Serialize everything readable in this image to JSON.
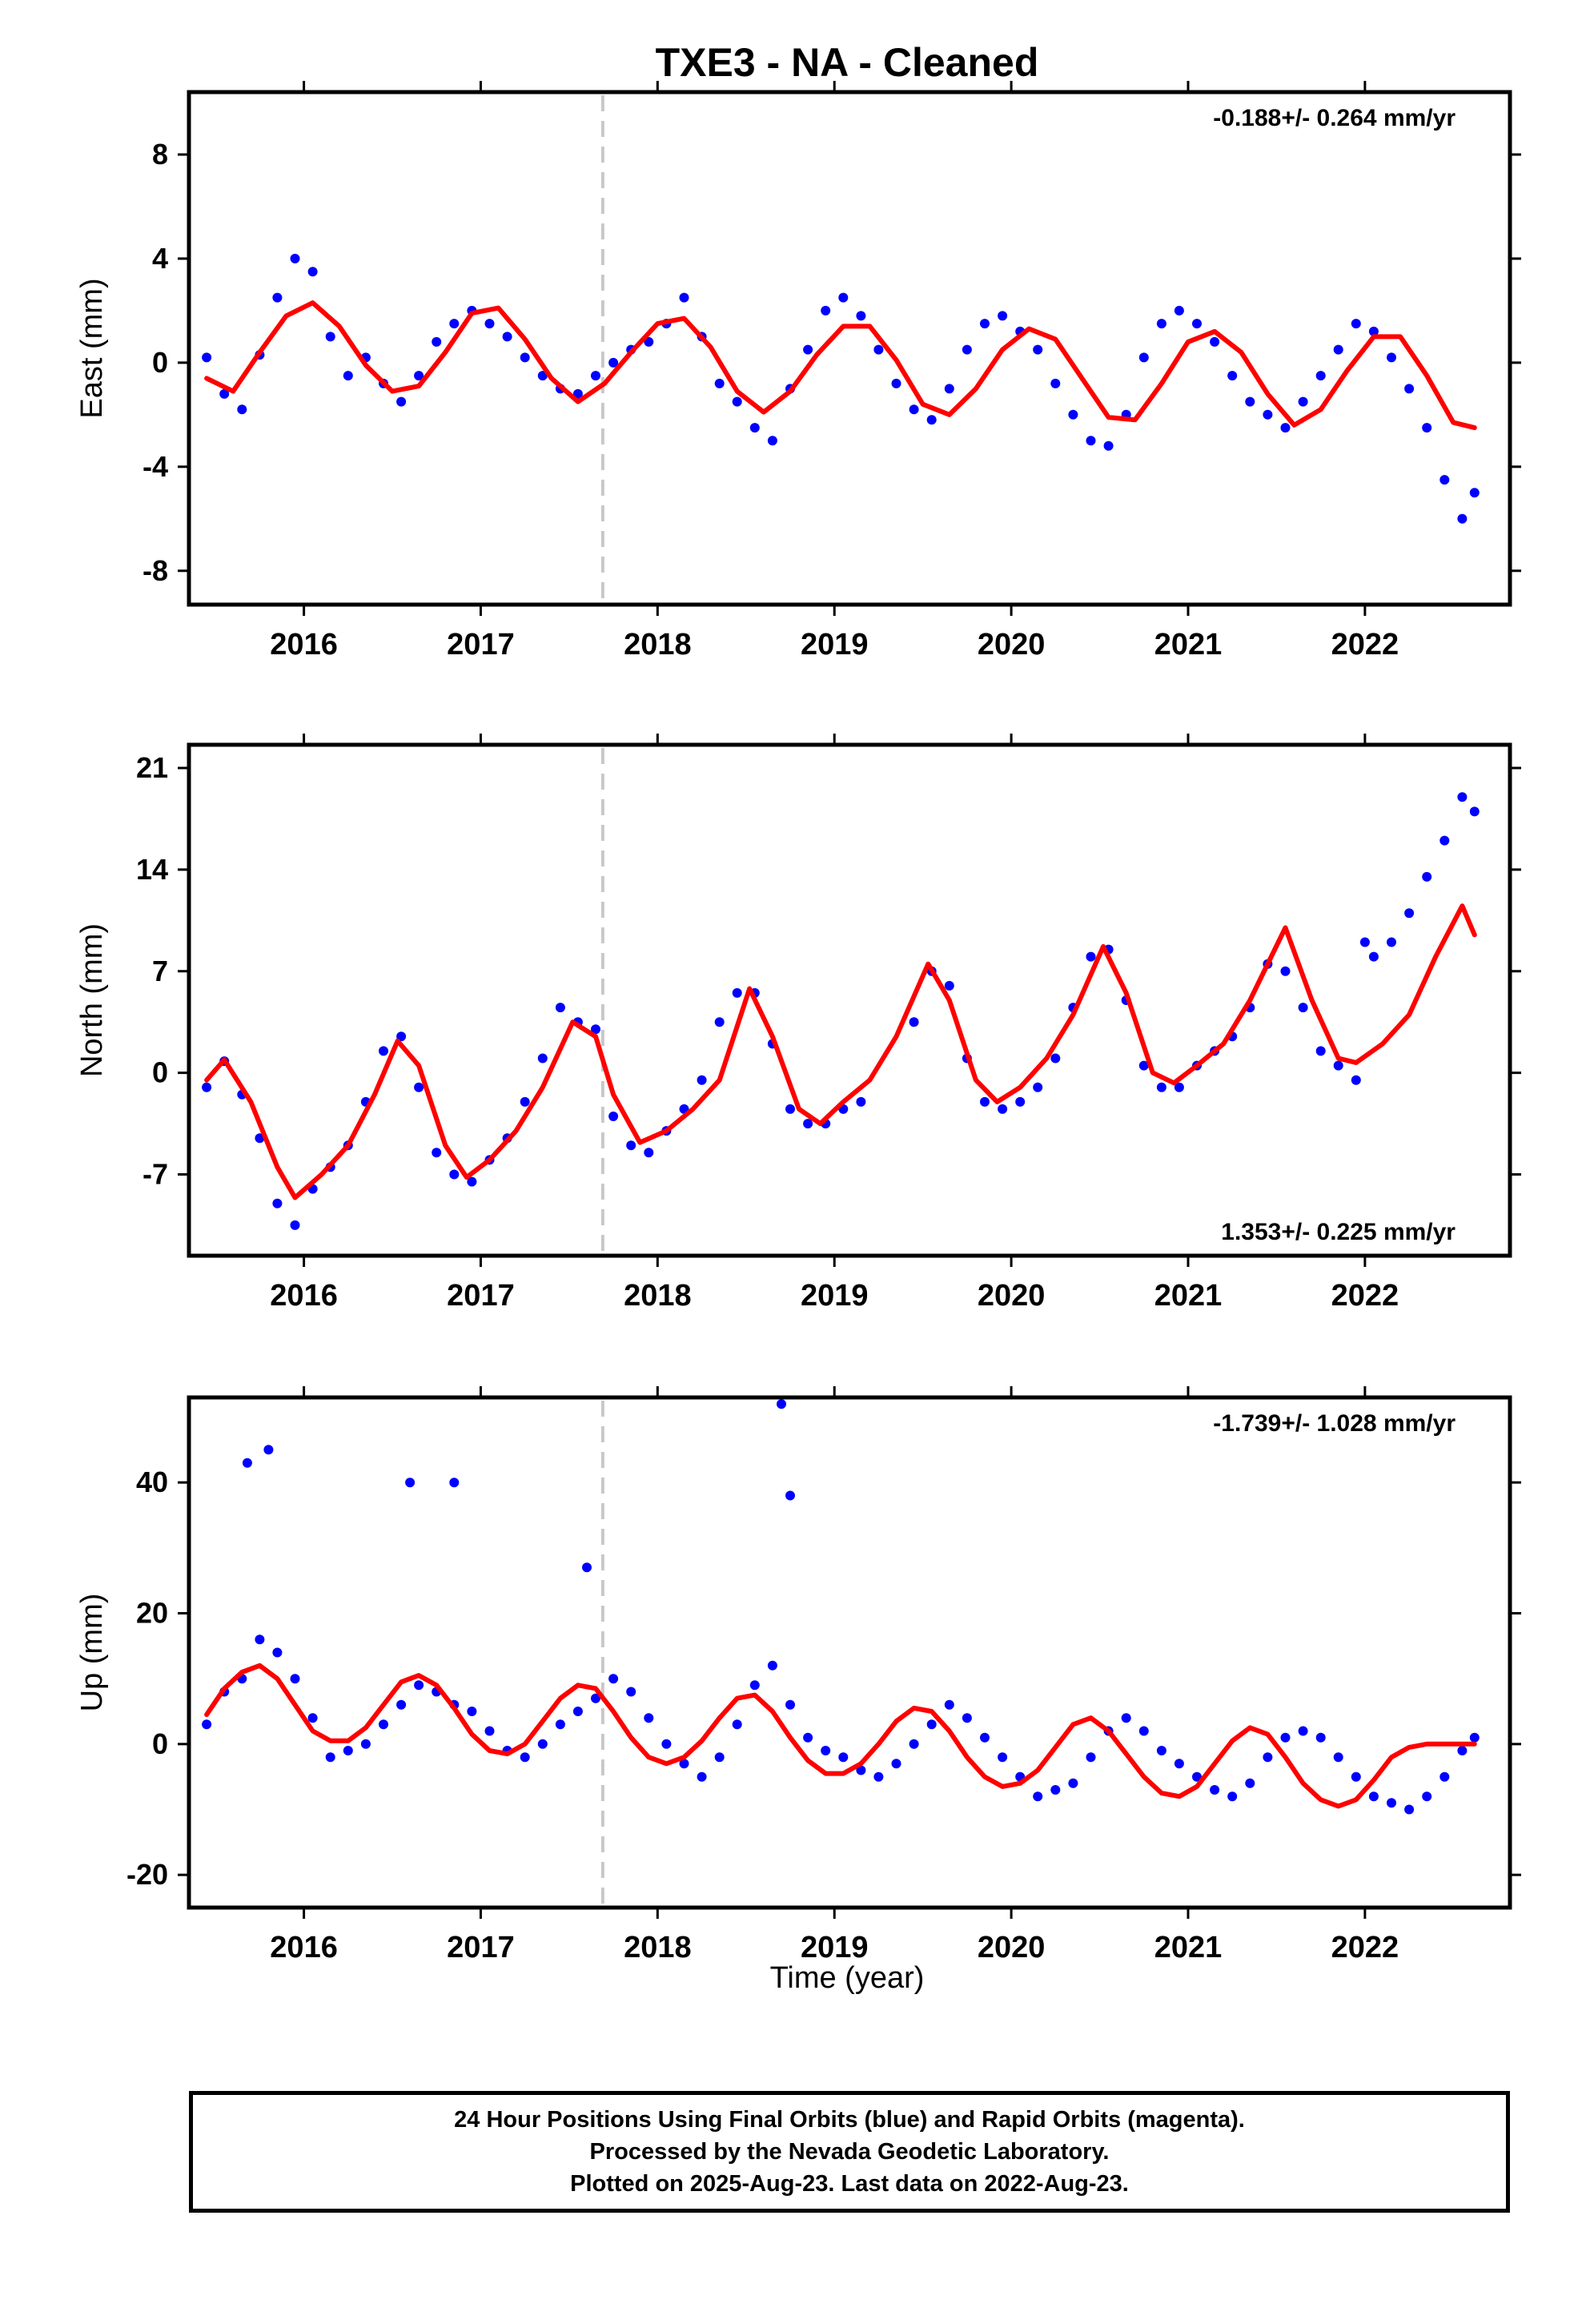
{
  "title": "TXE3  - NA - Cleaned",
  "xlabel": "Time (year)",
  "caption": [
    "24 Hour Positions Using Final Orbits (blue) and Rapid Orbits (magenta).",
    "Processed by the Nevada Geodetic Laboratory.",
    "Plotted on 2025-Aug-23. Last data on 2022-Aug-23."
  ],
  "colors": {
    "points": "#0000ff",
    "model": "#ff0000",
    "dashed_line": "#c8c8c8"
  },
  "chart_data": [
    {
      "type": "scatter",
      "component": "east",
      "ylabel": "East (mm)",
      "rate_label": "-0.188+/- 0.264 mm/yr",
      "rate_label_position": "top-right",
      "xlim": [
        2015.35,
        2022.82
      ],
      "ylim": [
        -9.3,
        10.4
      ],
      "xticks": [
        2016,
        2017,
        2018,
        2019,
        2020,
        2021,
        2022
      ],
      "yticks": [
        -8,
        -4,
        0,
        4,
        8
      ],
      "grid": false,
      "equipment_change_x": 2017.69,
      "series": [
        {
          "kind": "points",
          "x": [
            2015.45,
            2015.55,
            2015.65,
            2015.75,
            2015.85,
            2015.95,
            2016.05,
            2016.15,
            2016.25,
            2016.35,
            2016.45,
            2016.55,
            2016.65,
            2016.75,
            2016.85,
            2016.95,
            2017.05,
            2017.15,
            2017.25,
            2017.35,
            2017.45,
            2017.55,
            2017.65,
            2017.75,
            2017.85,
            2017.95,
            2018.05,
            2018.15,
            2018.25,
            2018.35,
            2018.45,
            2018.55,
            2018.65,
            2018.75,
            2018.85,
            2018.95,
            2019.05,
            2019.15,
            2019.25,
            2019.35,
            2019.45,
            2019.55,
            2019.65,
            2019.75,
            2019.85,
            2019.95,
            2020.05,
            2020.15,
            2020.25,
            2020.35,
            2020.45,
            2020.55,
            2020.65,
            2020.75,
            2020.85,
            2020.95,
            2021.05,
            2021.15,
            2021.25,
            2021.35,
            2021.45,
            2021.55,
            2021.65,
            2021.75,
            2021.85,
            2021.95,
            2022.05,
            2022.15,
            2022.25,
            2022.35,
            2022.45,
            2022.55,
            2022.62
          ],
          "y": [
            0.2,
            -1.2,
            -1.8,
            0.3,
            2.5,
            4.0,
            3.5,
            1.0,
            -0.5,
            0.2,
            -0.8,
            -1.5,
            -0.5,
            0.8,
            1.5,
            2.0,
            1.5,
            1.0,
            0.2,
            -0.5,
            -1.0,
            -1.2,
            -0.5,
            0.0,
            0.5,
            0.8,
            1.5,
            2.5,
            1.0,
            -0.8,
            -1.5,
            -2.5,
            -3.0,
            -1.0,
            0.5,
            2.0,
            2.5,
            1.8,
            0.5,
            -0.8,
            -1.8,
            -2.2,
            -1.0,
            0.5,
            1.5,
            1.8,
            1.2,
            0.5,
            -0.8,
            -2.0,
            -3.0,
            -3.2,
            -2.0,
            0.2,
            1.5,
            2.0,
            1.5,
            0.8,
            -0.5,
            -1.5,
            -2.0,
            -2.5,
            -1.5,
            -0.5,
            0.5,
            1.5,
            1.2,
            0.2,
            -1.0,
            -2.5,
            -4.5,
            -6.0,
            -5.0
          ]
        },
        {
          "kind": "model",
          "x": [
            2015.45,
            2015.6,
            2015.75,
            2015.9,
            2016.05,
            2016.2,
            2016.35,
            2016.5,
            2016.65,
            2016.8,
            2016.95,
            2017.1,
            2017.25,
            2017.4,
            2017.55,
            2017.7,
            2017.85,
            2018.0,
            2018.15,
            2018.3,
            2018.45,
            2018.6,
            2018.75,
            2018.9,
            2019.05,
            2019.2,
            2019.35,
            2019.5,
            2019.65,
            2019.8,
            2019.95,
            2020.1,
            2020.25,
            2020.4,
            2020.55,
            2020.7,
            2020.85,
            2021.0,
            2021.15,
            2021.3,
            2021.45,
            2021.6,
            2021.75,
            2021.9,
            2022.05,
            2022.2,
            2022.35,
            2022.5,
            2022.62
          ],
          "y": [
            -0.6,
            -1.1,
            0.4,
            1.8,
            2.3,
            1.4,
            -0.1,
            -1.1,
            -0.9,
            0.4,
            1.9,
            2.1,
            0.9,
            -0.6,
            -1.5,
            -0.8,
            0.4,
            1.5,
            1.7,
            0.6,
            -1.1,
            -1.9,
            -1.1,
            0.3,
            1.4,
            1.4,
            0.1,
            -1.6,
            -2.0,
            -1.0,
            0.5,
            1.3,
            0.9,
            -0.6,
            -2.1,
            -2.2,
            -0.8,
            0.8,
            1.2,
            0.4,
            -1.2,
            -2.4,
            -1.8,
            -0.3,
            1.0,
            1.0,
            -0.5,
            -2.3,
            -2.5
          ]
        }
      ]
    },
    {
      "type": "scatter",
      "component": "north",
      "ylabel": "North (mm)",
      "rate_label": "1.353+/- 0.225 mm/yr",
      "rate_label_position": "bottom-right",
      "xlim": [
        2015.35,
        2022.82
      ],
      "ylim": [
        -12.6,
        22.6
      ],
      "xticks": [
        2016,
        2017,
        2018,
        2019,
        2020,
        2021,
        2022
      ],
      "yticks": [
        -7,
        0,
        7,
        14,
        21
      ],
      "grid": false,
      "equipment_change_x": 2017.69,
      "series": [
        {
          "kind": "points",
          "x": [
            2015.45,
            2015.55,
            2015.65,
            2015.75,
            2015.85,
            2015.95,
            2016.05,
            2016.15,
            2016.25,
            2016.35,
            2016.45,
            2016.55,
            2016.65,
            2016.75,
            2016.85,
            2016.95,
            2017.05,
            2017.15,
            2017.25,
            2017.35,
            2017.45,
            2017.55,
            2017.65,
            2017.75,
            2017.85,
            2017.95,
            2018.05,
            2018.15,
            2018.25,
            2018.35,
            2018.45,
            2018.55,
            2018.65,
            2018.75,
            2018.85,
            2018.95,
            2019.05,
            2019.15,
            2019.45,
            2019.55,
            2019.65,
            2019.75,
            2019.85,
            2019.95,
            2020.05,
            2020.15,
            2020.25,
            2020.35,
            2020.45,
            2020.55,
            2020.65,
            2020.75,
            2020.85,
            2020.95,
            2021.05,
            2021.15,
            2021.25,
            2021.35,
            2021.45,
            2021.55,
            2021.65,
            2021.75,
            2021.85,
            2021.95,
            2022.0,
            2022.05,
            2022.15,
            2022.25,
            2022.35,
            2022.45,
            2022.55,
            2022.62
          ],
          "y": [
            -1.0,
            0.8,
            -1.5,
            -4.5,
            -9.0,
            -10.5,
            -8.0,
            -6.5,
            -5.0,
            -2.0,
            1.5,
            2.5,
            -1.0,
            -5.5,
            -7.0,
            -7.5,
            -6.0,
            -4.5,
            -2.0,
            1.0,
            4.5,
            3.5,
            3.0,
            -3.0,
            -5.0,
            -5.5,
            -4.0,
            -2.5,
            -0.5,
            3.5,
            5.5,
            5.5,
            2.0,
            -2.5,
            -3.5,
            -3.5,
            -2.5,
            -2.0,
            3.5,
            7.0,
            6.0,
            1.0,
            -2.0,
            -2.5,
            -2.0,
            -1.0,
            1.0,
            4.5,
            8.0,
            8.5,
            5.0,
            0.5,
            -1.0,
            -1.0,
            0.5,
            1.5,
            2.5,
            4.5,
            7.5,
            7.0,
            4.5,
            1.5,
            0.5,
            -0.5,
            9.0,
            8.0,
            9.0,
            11.0,
            13.5,
            16.0,
            19.0,
            18.0
          ]
        },
        {
          "kind": "model",
          "x": [
            2015.45,
            2015.55,
            2015.7,
            2015.85,
            2015.95,
            2016.1,
            2016.25,
            2016.4,
            2016.53,
            2016.65,
            2016.8,
            2016.92,
            2017.05,
            2017.2,
            2017.35,
            2017.52,
            2017.65,
            2017.75,
            2017.9,
            2018.05,
            2018.2,
            2018.35,
            2018.52,
            2018.65,
            2018.8,
            2018.92,
            2019.05,
            2019.2,
            2019.35,
            2019.53,
            2019.65,
            2019.8,
            2019.92,
            2020.05,
            2020.2,
            2020.35,
            2020.52,
            2020.65,
            2020.8,
            2020.92,
            2021.05,
            2021.2,
            2021.35,
            2021.55,
            2021.7,
            2021.85,
            2021.95,
            2022.1,
            2022.25,
            2022.4,
            2022.55,
            2022.62
          ],
          "y": [
            -0.5,
            0.9,
            -2.0,
            -6.5,
            -8.6,
            -7.0,
            -5.0,
            -1.5,
            2.2,
            0.5,
            -5.0,
            -7.2,
            -6.0,
            -4.0,
            -1.0,
            3.5,
            2.5,
            -1.5,
            -4.8,
            -4.0,
            -2.5,
            -0.5,
            5.8,
            2.5,
            -2.5,
            -3.5,
            -2.0,
            -0.5,
            2.5,
            7.5,
            5.0,
            -0.5,
            -2.0,
            -1.0,
            1.0,
            4.0,
            8.7,
            5.5,
            0.0,
            -0.7,
            0.5,
            2.0,
            5.0,
            10.0,
            5.0,
            1.0,
            0.7,
            2.0,
            4.0,
            8.0,
            11.5,
            9.5
          ]
        }
      ]
    },
    {
      "type": "scatter",
      "component": "up",
      "ylabel": "Up (mm)",
      "rate_label": "-1.739+/- 1.028 mm/yr",
      "rate_label_position": "top-right",
      "xlim": [
        2015.35,
        2022.82
      ],
      "ylim": [
        -25,
        53
      ],
      "xticks": [
        2016,
        2017,
        2018,
        2019,
        2020,
        2021,
        2022
      ],
      "yticks": [
        -20,
        0,
        20,
        40
      ],
      "grid": false,
      "equipment_change_x": 2017.69,
      "series": [
        {
          "kind": "points",
          "x": [
            2015.45,
            2015.55,
            2015.65,
            2015.75,
            2015.85,
            2015.95,
            2016.05,
            2016.15,
            2016.25,
            2016.35,
            2016.45,
            2016.55,
            2016.65,
            2016.75,
            2016.85,
            2016.95,
            2017.05,
            2017.15,
            2017.25,
            2017.35,
            2017.45,
            2017.55,
            2017.65,
            2017.75,
            2017.85,
            2017.95,
            2018.05,
            2018.15,
            2018.25,
            2018.35,
            2018.45,
            2018.55,
            2018.65,
            2018.75,
            2018.85,
            2018.95,
            2019.05,
            2019.15,
            2019.25,
            2019.35,
            2019.45,
            2019.55,
            2019.65,
            2019.75,
            2019.85,
            2019.95,
            2020.05,
            2020.15,
            2020.25,
            2020.35,
            2020.45,
            2020.55,
            2020.65,
            2020.75,
            2020.85,
            2020.95,
            2021.05,
            2021.15,
            2021.25,
            2021.35,
            2021.45,
            2021.55,
            2021.65,
            2021.75,
            2021.85,
            2021.95,
            2022.05,
            2022.15,
            2022.25,
            2022.35,
            2022.45,
            2022.55,
            2022.62,
            2015.68,
            2015.8,
            2016.6,
            2016.85,
            2018.7,
            2018.75,
            2017.6
          ],
          "y": [
            3,
            8,
            10,
            16,
            14,
            10,
            4,
            -2,
            -1,
            0,
            3,
            6,
            9,
            8,
            6,
            5,
            2,
            -1,
            -2,
            0,
            3,
            5,
            7,
            10,
            8,
            4,
            0,
            -3,
            -5,
            -2,
            3,
            9,
            12,
            6,
            1,
            -1,
            -2,
            -4,
            -5,
            -3,
            0,
            3,
            6,
            4,
            1,
            -2,
            -5,
            -8,
            -7,
            -6,
            -2,
            2,
            4,
            2,
            -1,
            -3,
            -5,
            -7,
            -8,
            -6,
            -2,
            1,
            2,
            1,
            -2,
            -5,
            -8,
            -9,
            -10,
            -8,
            -5,
            -1,
            1,
            43,
            45,
            40,
            40,
            52,
            38,
            27
          ]
        },
        {
          "kind": "model",
          "x": [
            2015.45,
            2015.55,
            2015.65,
            2015.75,
            2015.85,
            2015.95,
            2016.05,
            2016.15,
            2016.25,
            2016.35,
            2016.45,
            2016.55,
            2016.65,
            2016.75,
            2016.85,
            2016.95,
            2017.05,
            2017.15,
            2017.25,
            2017.35,
            2017.45,
            2017.55,
            2017.65,
            2017.75,
            2017.85,
            2017.95,
            2018.05,
            2018.15,
            2018.25,
            2018.35,
            2018.45,
            2018.55,
            2018.65,
            2018.75,
            2018.85,
            2018.95,
            2019.05,
            2019.15,
            2019.25,
            2019.35,
            2019.45,
            2019.55,
            2019.65,
            2019.75,
            2019.85,
            2019.95,
            2020.05,
            2020.15,
            2020.25,
            2020.35,
            2020.45,
            2020.55,
            2020.65,
            2020.75,
            2020.85,
            2020.95,
            2021.05,
            2021.15,
            2021.25,
            2021.35,
            2021.45,
            2021.55,
            2021.65,
            2021.75,
            2021.85,
            2021.95,
            2022.05,
            2022.15,
            2022.25,
            2022.35,
            2022.45,
            2022.55,
            2022.62
          ],
          "y": [
            4.5,
            8.5,
            11.0,
            12.0,
            10.0,
            6.0,
            2.0,
            0.5,
            0.5,
            2.5,
            6.0,
            9.5,
            10.5,
            9.0,
            5.5,
            1.5,
            -1.0,
            -1.5,
            0.0,
            3.5,
            7.0,
            9.0,
            8.5,
            5.0,
            1.0,
            -2.0,
            -3.0,
            -2.0,
            0.5,
            4.0,
            7.0,
            7.5,
            5.0,
            1.0,
            -2.5,
            -4.5,
            -4.5,
            -3.0,
            0.0,
            3.5,
            5.5,
            5.0,
            2.0,
            -2.0,
            -5.0,
            -6.5,
            -6.0,
            -4.0,
            -0.5,
            3.0,
            4.0,
            2.0,
            -1.5,
            -5.0,
            -7.5,
            -8.0,
            -6.5,
            -3.0,
            0.5,
            2.5,
            1.5,
            -2.0,
            -6.0,
            -8.5,
            -9.5,
            -8.5,
            -5.5,
            -2.0,
            -0.5,
            0,
            0,
            0,
            0
          ]
        }
      ]
    }
  ]
}
